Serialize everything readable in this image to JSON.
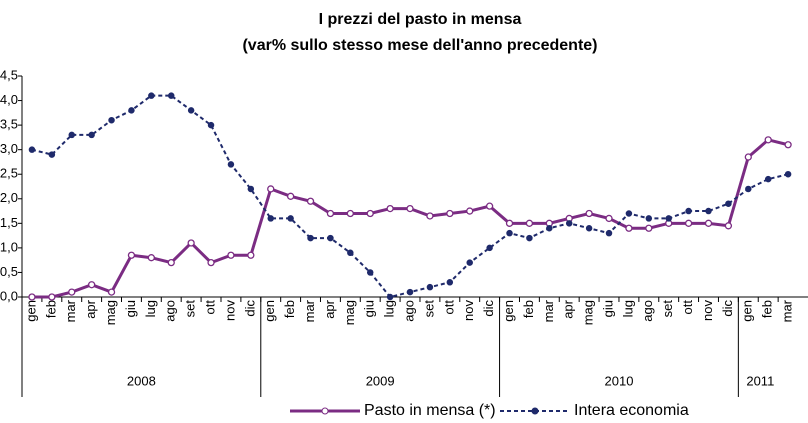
{
  "chart_data": {
    "type": "line",
    "title": "I prezzi del pasto in mensa",
    "subtitle": "(var% sullo stesso mese dell'anno precedente)",
    "categories": [
      "gen",
      "feb",
      "mar",
      "apr",
      "mag",
      "giu",
      "lug",
      "ago",
      "set",
      "ott",
      "nov",
      "dic",
      "gen",
      "feb",
      "mar",
      "apr",
      "mag",
      "giu",
      "lug",
      "ago",
      "set",
      "ott",
      "nov",
      "dic",
      "gen",
      "feb",
      "mar",
      "apr",
      "mag",
      "giu",
      "lug",
      "ago",
      "set",
      "ott",
      "nov",
      "dic",
      "gen",
      "feb",
      "mar"
    ],
    "years": [
      "2008",
      "2009",
      "2010",
      "2011"
    ],
    "series": [
      {
        "name": "Pasto in mensa (*)",
        "color": "#7b2c83",
        "values": [
          0.0,
          0.0,
          0.1,
          0.25,
          0.1,
          0.85,
          0.8,
          0.7,
          1.1,
          0.7,
          0.85,
          0.85,
          2.2,
          2.05,
          1.95,
          1.7,
          1.7,
          1.7,
          1.8,
          1.8,
          1.65,
          1.7,
          1.75,
          1.85,
          1.5,
          1.5,
          1.5,
          1.6,
          1.7,
          1.6,
          1.4,
          1.4,
          1.5,
          1.5,
          1.5,
          1.45,
          2.85,
          3.2,
          3.1
        ]
      },
      {
        "name": "Intera economia",
        "color": "#1f2a6b",
        "values": [
          3.0,
          2.9,
          3.3,
          3.3,
          3.6,
          3.8,
          4.1,
          4.1,
          3.8,
          3.5,
          2.7,
          2.2,
          1.6,
          1.6,
          1.2,
          1.2,
          0.9,
          0.5,
          0.0,
          0.1,
          0.2,
          0.3,
          0.7,
          1.0,
          1.3,
          1.2,
          1.4,
          1.5,
          1.4,
          1.3,
          1.7,
          1.6,
          1.6,
          1.75,
          1.75,
          1.9,
          2.2,
          2.4,
          2.5
        ]
      }
    ],
    "ylim": [
      0,
      4.5
    ],
    "yticks": [
      {
        "value": 0,
        "label": "0,0"
      },
      {
        "value": 0.5,
        "label": "0,5"
      },
      {
        "value": 1,
        "label": "1,0"
      },
      {
        "value": 1.5,
        "label": "1,5"
      },
      {
        "value": 2,
        "label": "2,0"
      },
      {
        "value": 2.5,
        "label": "2,5"
      },
      {
        "value": 3,
        "label": "3,0"
      },
      {
        "value": 3.5,
        "label": "3,5"
      },
      {
        "value": 4,
        "label": "4,0"
      },
      {
        "value": 4.5,
        "label": "4,5"
      }
    ]
  }
}
